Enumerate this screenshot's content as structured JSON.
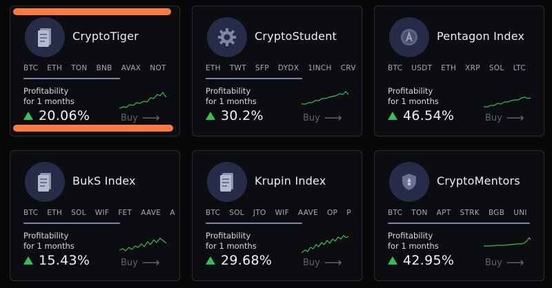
{
  "colors": {
    "accent_green": "#2fc15a",
    "highlight": "#ff7a3f",
    "avatar_bg": "#262b47"
  },
  "cards": [
    {
      "name": "CryptoTiger",
      "icon": "document-icon",
      "tickers": [
        "BTC",
        "ETH",
        "TON",
        "BNB",
        "AVAX",
        "NOT"
      ],
      "profit_label": "Profitability",
      "period_label": "for 1 months",
      "profit": "20.06%",
      "buy_label": "Buy"
    },
    {
      "name": "CryptoStudent",
      "icon": "gear-icon",
      "tickers": [
        "ETH",
        "TWT",
        "SFP",
        "DYDX",
        "1INCH",
        "CRV"
      ],
      "profit_label": "Profitability",
      "period_label": "for 1 months",
      "profit": "30.2%",
      "buy_label": "Buy"
    },
    {
      "name": "Pentagon Index",
      "icon": "coin-icon",
      "tickers": [
        "BTC",
        "USDT",
        "ETH",
        "XRP",
        "SOL",
        "LTC"
      ],
      "profit_label": "Profitability",
      "period_label": "for 1 months",
      "profit": "46.54%",
      "buy_label": "Buy"
    },
    {
      "name": "BukS Index",
      "icon": "document-icon",
      "tickers": [
        "BTC",
        "ETH",
        "SOL",
        "WIF",
        "FET",
        "AAVE",
        "A"
      ],
      "profit_label": "Profitability",
      "period_label": "for 1 months",
      "profit": "15.43%",
      "buy_label": "Buy"
    },
    {
      "name": "Krupin Index",
      "icon": "document-icon",
      "tickers": [
        "BTC",
        "SOL",
        "JTO",
        "WIF",
        "AAVE",
        "OP",
        "P"
      ],
      "profit_label": "Profitability",
      "period_label": "for 1 months",
      "profit": "29.68%",
      "buy_label": "Buy"
    },
    {
      "name": "CryptoMentors",
      "icon": "shield-icon",
      "tickers": [
        "BTC",
        "TON",
        "APT",
        "STRK",
        "BGB",
        "UNI"
      ],
      "profit_label": "Profitability",
      "period_label": "for 1 months",
      "profit": "42.95%",
      "buy_label": "Buy"
    }
  ]
}
